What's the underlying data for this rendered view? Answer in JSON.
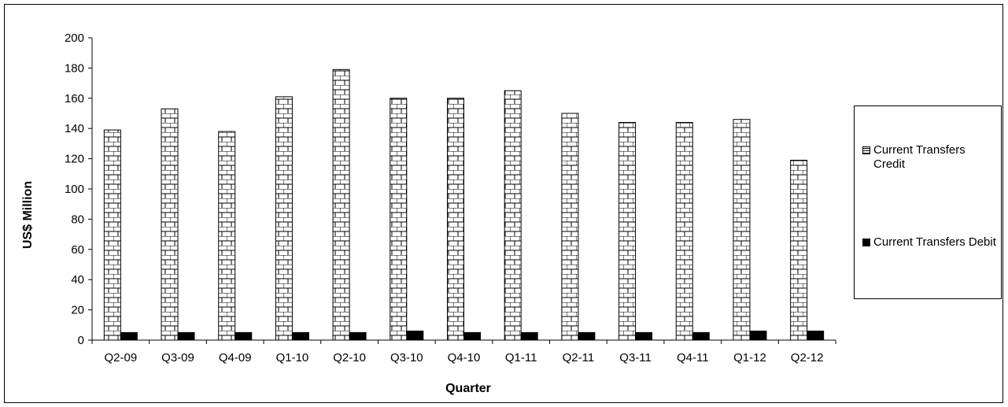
{
  "chart_data": {
    "type": "bar",
    "categories": [
      "Q2-09",
      "Q3-09",
      "Q4-09",
      "Q1-10",
      "Q2-10",
      "Q3-10",
      "Q4-10",
      "Q1-11",
      "Q2-11",
      "Q3-11",
      "Q4-11",
      "Q1-12",
      "Q2-12"
    ],
    "series": [
      {
        "name": "Current Transfers Credit",
        "values": [
          139,
          153,
          138,
          161,
          179,
          160,
          160,
          165,
          150,
          144,
          144,
          146,
          119
        ],
        "pattern": "brick",
        "color": "#000000"
      },
      {
        "name": "Current Transfers Debit",
        "values": [
          5,
          5,
          5,
          5,
          5,
          6,
          5,
          5,
          5,
          5,
          5,
          6,
          6
        ],
        "pattern": "solid",
        "color": "#000000"
      }
    ],
    "xlabel": "Quarter",
    "ylabel": "US$ Million",
    "ylim": [
      0,
      200
    ],
    "yticks": [
      0,
      20,
      40,
      60,
      80,
      100,
      120,
      140,
      160,
      180,
      200
    ],
    "grid": false,
    "legend_position": "right"
  }
}
